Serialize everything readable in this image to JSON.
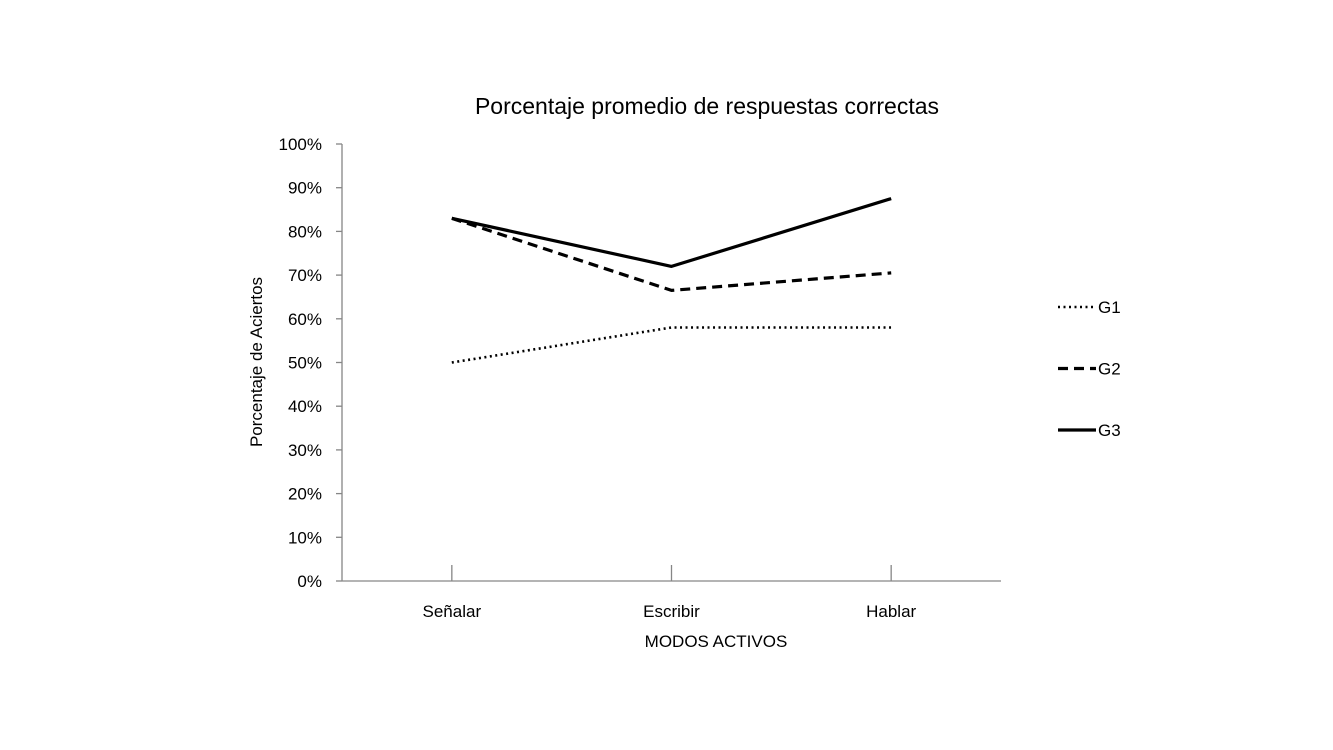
{
  "chart_data": {
    "type": "line",
    "title": "Porcentaje promedio de respuestas correctas",
    "xlabel": "MODOS ACTIVOS",
    "ylabel": "Porcentaje de Aciertos",
    "categories": [
      "Señalar",
      "Escribir",
      "Hablar"
    ],
    "y_ticks": [
      "0%",
      "10%",
      "20%",
      "30%",
      "40%",
      "50%",
      "60%",
      "70%",
      "80%",
      "90%",
      "100%"
    ],
    "ylim": [
      0,
      100
    ],
    "grid": false,
    "legend_position": "right",
    "series": [
      {
        "name": "G1",
        "values": [
          50,
          58,
          58
        ],
        "line_style": "dotted",
        "color": "#000000"
      },
      {
        "name": "G2",
        "values": [
          83,
          66.5,
          70.5
        ],
        "line_style": "dashed",
        "color": "#000000"
      },
      {
        "name": "G3",
        "values": [
          83,
          72,
          87.5
        ],
        "line_style": "solid",
        "color": "#000000"
      }
    ]
  }
}
